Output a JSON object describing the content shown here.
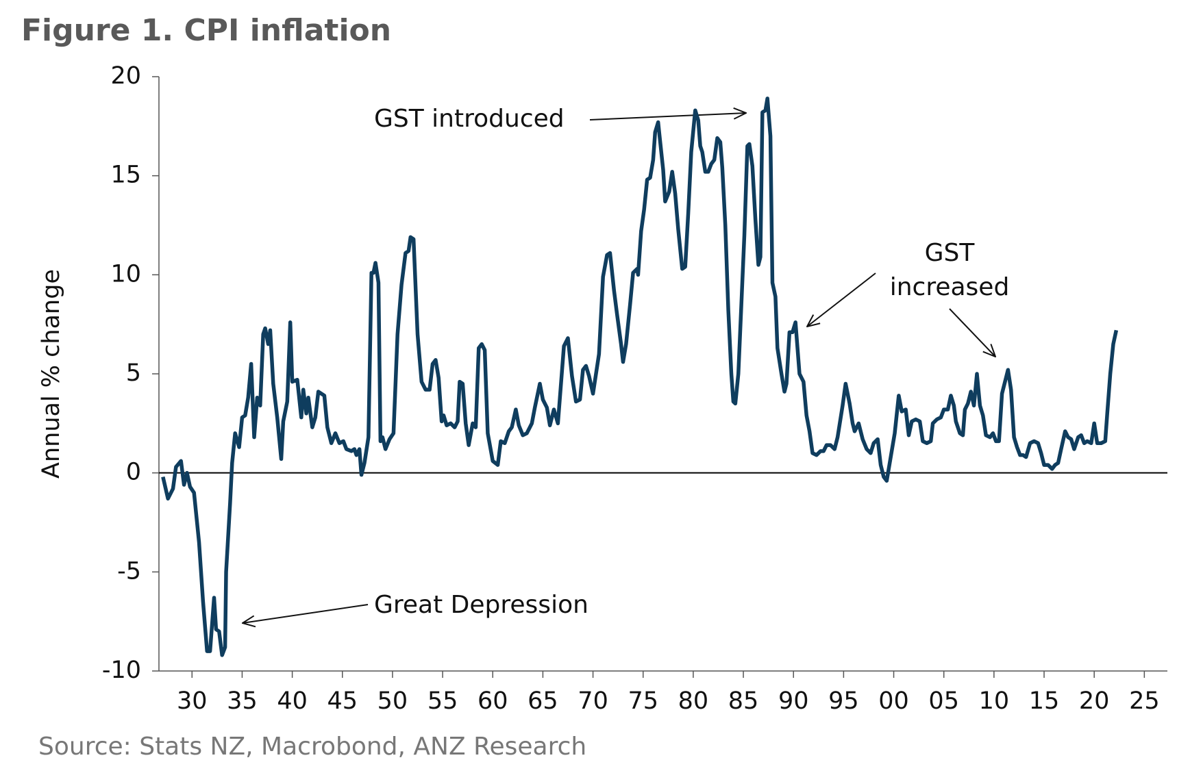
{
  "chart_data": {
    "type": "line",
    "title": "Figure 1.  CPI inflation",
    "y_label": "Annual % change",
    "source": "Source: Stats NZ, Macrobond, ANZ Research",
    "annotations": {
      "gst_introduced": "GST introduced",
      "gst_increased": [
        "GST",
        "increased"
      ],
      "great_depression": "Great Depression"
    },
    "xlim": [
      1926.7,
      2027.3
    ],
    "ylim": [
      -10,
      20
    ],
    "yticks": [
      -10,
      -5,
      0,
      5,
      10,
      15,
      20
    ],
    "xticks": [
      {
        "value": 1930,
        "label": "30"
      },
      {
        "value": 1935,
        "label": "35"
      },
      {
        "value": 1940,
        "label": "40"
      },
      {
        "value": 1945,
        "label": "45"
      },
      {
        "value": 1950,
        "label": "50"
      },
      {
        "value": 1955,
        "label": "55"
      },
      {
        "value": 1960,
        "label": "60"
      },
      {
        "value": 1965,
        "label": "65"
      },
      {
        "value": 1970,
        "label": "70"
      },
      {
        "value": 1975,
        "label": "75"
      },
      {
        "value": 1980,
        "label": "80"
      },
      {
        "value": 1985,
        "label": "85"
      },
      {
        "value": 1990,
        "label": "90"
      },
      {
        "value": 1995,
        "label": "95"
      },
      {
        "value": 2000,
        "label": "00"
      },
      {
        "value": 2005,
        "label": "05"
      },
      {
        "value": 2010,
        "label": "10"
      },
      {
        "value": 2015,
        "label": "15"
      },
      {
        "value": 2020,
        "label": "20"
      },
      {
        "value": 2025,
        "label": "25"
      }
    ],
    "color": "#0f3d5e",
    "x": [
      1927.1,
      1927.6,
      1928.1,
      1928.4,
      1928.9,
      1929.2,
      1929.5,
      1929.8,
      1930.2,
      1930.7,
      1931.1,
      1931.5,
      1931.8,
      1932.2,
      1932.4,
      1932.7,
      1933.0,
      1933.3,
      1933.4,
      1933.8,
      1934.0,
      1934.3,
      1934.7,
      1935.0,
      1935.3,
      1935.6,
      1935.9,
      1936.2,
      1936.5,
      1936.8,
      1937.1,
      1937.3,
      1937.6,
      1937.8,
      1938.1,
      1938.5,
      1938.9,
      1939.1,
      1939.5,
      1939.8,
      1940.0,
      1940.5,
      1940.9,
      1941.1,
      1941.4,
      1941.6,
      1942.0,
      1942.3,
      1942.6,
      1943.2,
      1943.5,
      1943.9,
      1944.3,
      1944.7,
      1945.1,
      1945.4,
      1945.9,
      1946.2,
      1946.4,
      1946.7,
      1946.9,
      1947.2,
      1947.6,
      1947.9,
      1948.1,
      1948.3,
      1948.6,
      1948.8,
      1949.0,
      1949.3,
      1949.7,
      1950.1,
      1950.5,
      1950.9,
      1951.3,
      1951.6,
      1951.8,
      1952.1,
      1952.5,
      1952.9,
      1953.3,
      1953.7,
      1954.0,
      1954.3,
      1954.6,
      1954.9,
      1955.1,
      1955.4,
      1955.8,
      1956.2,
      1956.5,
      1956.7,
      1957.0,
      1957.3,
      1957.6,
      1958.0,
      1958.3,
      1958.6,
      1958.9,
      1959.2,
      1959.5,
      1960.0,
      1960.5,
      1960.8,
      1961.2,
      1961.6,
      1961.9,
      1962.3,
      1962.6,
      1963.0,
      1963.4,
      1963.9,
      1964.2,
      1964.7,
      1965.0,
      1965.4,
      1965.7,
      1966.1,
      1966.5,
      1967.1,
      1967.5,
      1967.9,
      1968.3,
      1968.7,
      1969.0,
      1969.3,
      1969.6,
      1970.0,
      1970.3,
      1970.6,
      1971.0,
      1971.4,
      1971.7,
      1972.1,
      1972.4,
      1972.8,
      1973.0,
      1973.3,
      1973.7,
      1974.0,
      1974.4,
      1974.5,
      1974.8,
      1975.1,
      1975.4,
      1975.7,
      1976.0,
      1976.2,
      1976.5,
      1976.6,
      1977.0,
      1977.2,
      1977.6,
      1977.9,
      1978.2,
      1978.5,
      1978.9,
      1979.2,
      1979.5,
      1979.8,
      1980.2,
      1980.5,
      1980.7,
      1980.9,
      1981.2,
      1981.5,
      1981.8,
      1982.1,
      1982.4,
      1982.7,
      1982.9,
      1983.2,
      1983.5,
      1983.8,
      1984.0,
      1984.2,
      1984.5,
      1984.8,
      1985.1,
      1985.4,
      1985.6,
      1985.9,
      1986.2,
      1986.5,
      1986.7,
      1986.9,
      1987.2,
      1987.4,
      1987.7,
      1987.9,
      1988.2,
      1988.4,
      1988.8,
      1989.1,
      1989.3,
      1989.6,
      1989.9,
      1990.2,
      1990.6,
      1991.0,
      1991.3,
      1991.6,
      1991.9,
      1992.3,
      1992.7,
      1993.0,
      1993.3,
      1993.7,
      1994.1,
      1994.4,
      1994.9,
      1995.2,
      1995.6,
      1995.9,
      1996.1,
      1996.5,
      1996.9,
      1997.3,
      1997.7,
      1998.0,
      1998.4,
      1998.7,
      1999.0,
      1999.3,
      1999.7,
      2000.1,
      2000.5,
      2000.8,
      2001.2,
      2001.5,
      2001.8,
      2002.2,
      2002.6,
      2002.9,
      2003.3,
      2003.7,
      2003.9,
      2004.3,
      2004.7,
      2005.0,
      2005.4,
      2005.7,
      2006.0,
      2006.2,
      2006.6,
      2006.9,
      2007.1,
      2007.4,
      2007.7,
      2008.0,
      2008.3,
      2008.6,
      2008.9,
      2009.2,
      2009.6,
      2009.9,
      2010.2,
      2010.5,
      2010.8,
      2011.4,
      2011.7,
      2012.0,
      2012.3,
      2012.6,
      2012.9,
      2013.2,
      2013.6,
      2014.0,
      2014.4,
      2014.7,
      2015.0,
      2015.4,
      2015.8,
      2016.1,
      2016.4,
      2016.7,
      2017.1,
      2017.4,
      2017.7,
      2018.0,
      2018.4,
      2018.7,
      2019.0,
      2019.3,
      2019.7,
      2020.0,
      2020.3,
      2020.7,
      2021.1,
      2021.3,
      2021.6,
      2021.9,
      2022.2
    ],
    "values": [
      -0.2,
      -1.3,
      -0.8,
      0.3,
      0.6,
      -0.6,
      0.0,
      -0.7,
      -1.0,
      -3.5,
      -6.5,
      -9.0,
      -9.0,
      -6.3,
      -7.9,
      -8.0,
      -9.2,
      -8.8,
      -5.0,
      -1.5,
      0.5,
      2.0,
      1.3,
      2.8,
      2.9,
      3.8,
      5.5,
      1.8,
      3.8,
      3.4,
      7.0,
      7.3,
      6.5,
      7.2,
      4.5,
      2.8,
      0.7,
      2.6,
      3.6,
      7.6,
      4.6,
      4.7,
      2.8,
      4.2,
      3.0,
      3.8,
      2.3,
      2.8,
      4.1,
      3.9,
      2.3,
      1.5,
      2.0,
      1.5,
      1.6,
      1.2,
      1.1,
      1.2,
      0.9,
      1.2,
      -0.1,
      0.5,
      1.8,
      10.1,
      10.1,
      10.6,
      9.6,
      1.6,
      1.8,
      1.2,
      1.7,
      2.0,
      7.0,
      9.5,
      11.1,
      11.2,
      11.9,
      11.8,
      7.0,
      4.6,
      4.2,
      4.2,
      5.5,
      5.7,
      4.8,
      2.6,
      2.9,
      2.4,
      2.5,
      2.3,
      2.6,
      4.6,
      4.5,
      2.5,
      1.4,
      2.5,
      2.3,
      6.3,
      6.5,
      6.2,
      2.0,
      0.6,
      0.4,
      1.6,
      1.5,
      2.1,
      2.3,
      3.2,
      2.4,
      1.9,
      2.0,
      2.5,
      3.3,
      4.5,
      3.7,
      3.3,
      2.4,
      3.2,
      2.5,
      6.4,
      6.8,
      4.9,
      3.6,
      3.7,
      5.2,
      5.4,
      4.9,
      4.0,
      5.0,
      6.0,
      9.9,
      11.0,
      11.1,
      9.2,
      8.0,
      6.5,
      5.6,
      6.5,
      8.5,
      10.1,
      10.3,
      10.0,
      12.2,
      13.3,
      14.8,
      14.9,
      15.8,
      17.2,
      17.7,
      17.2,
      15.3,
      13.7,
      14.2,
      15.2,
      14.1,
      12.3,
      10.3,
      10.4,
      13.1,
      16.2,
      18.3,
      17.8,
      16.5,
      16.2,
      15.2,
      15.2,
      15.6,
      15.8,
      16.9,
      16.7,
      15.4,
      12.5,
      8.2,
      5.0,
      3.6,
      3.5,
      5.0,
      8.5,
      12.0,
      16.5,
      16.6,
      15.5,
      12.8,
      10.5,
      10.9,
      18.2,
      18.3,
      18.9,
      17.0,
      9.6,
      8.9,
      6.3,
      5.0,
      4.1,
      4.5,
      7.1,
      7.1,
      7.6,
      5.0,
      4.6,
      2.9,
      2.1,
      1.0,
      0.9,
      1.1,
      1.1,
      1.4,
      1.4,
      1.2,
      1.8,
      3.4,
      4.5,
      3.5,
      2.5,
      2.1,
      2.5,
      1.7,
      1.2,
      1.0,
      1.5,
      1.7,
      0.4,
      -0.2,
      -0.4,
      0.8,
      2.0,
      3.9,
      3.1,
      3.2,
      1.9,
      2.6,
      2.7,
      2.6,
      1.6,
      1.5,
      1.6,
      2.5,
      2.7,
      2.8,
      3.2,
      3.2,
      3.9,
      3.4,
      2.6,
      2.0,
      1.9,
      3.2,
      3.5,
      4.1,
      3.4,
      5.0,
      3.4,
      2.9,
      1.9,
      1.8,
      2.0,
      1.6,
      1.6,
      4.0,
      5.2,
      4.2,
      1.8,
      1.3,
      0.9,
      0.9,
      0.8,
      1.5,
      1.6,
      1.5,
      1.0,
      0.4,
      0.4,
      0.2,
      0.4,
      0.5,
      1.2,
      2.1,
      1.8,
      1.7,
      1.2,
      1.8,
      1.9,
      1.5,
      1.6,
      1.5,
      2.5,
      1.5,
      1.5,
      1.6,
      3.0,
      5.0,
      6.5,
      7.2
    ]
  }
}
